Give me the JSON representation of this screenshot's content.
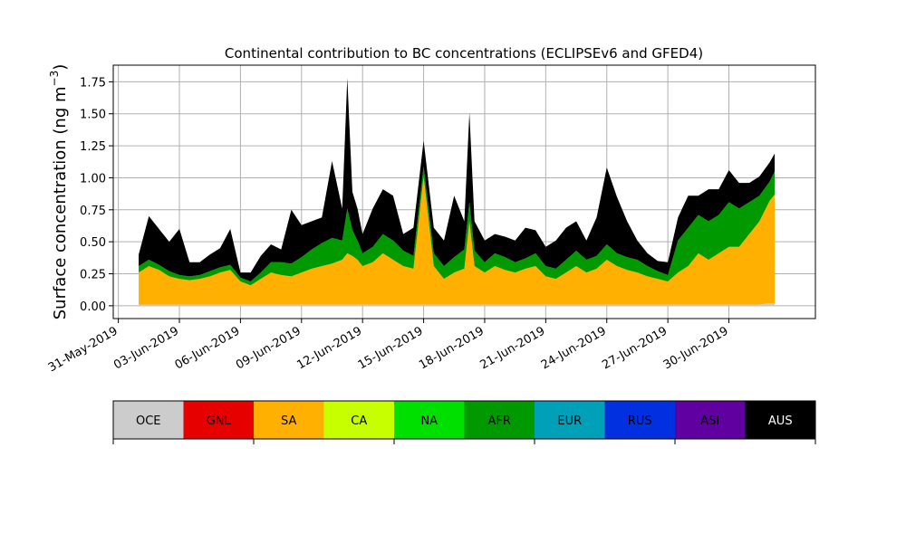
{
  "chart_data": {
    "type": "area",
    "stacked": true,
    "title": "Continental contribution to BC concentrations (ECLIPSEv6 and GFED4)",
    "xlabel": "",
    "ylabel": "Surface concentration (ng m",
    "ylabel_superscript": "−3",
    "ylabel_close": ")",
    "xlim": [
      "2019-05-30T18:00",
      "2019-07-04T06:00"
    ],
    "ylim": [
      -0.1,
      1.88
    ],
    "x_ticks": [
      "31-May-2019",
      "03-Jun-2019",
      "06-Jun-2019",
      "09-Jun-2019",
      "12-Jun-2019",
      "15-Jun-2019",
      "18-Jun-2019",
      "21-Jun-2019",
      "24-Jun-2019",
      "27-Jun-2019",
      "30-Jun-2019"
    ],
    "x_tick_dates": [
      "2019-05-31",
      "2019-06-03",
      "2019-06-06",
      "2019-06-09",
      "2019-06-12",
      "2019-06-15",
      "2019-06-18",
      "2019-06-21",
      "2019-06-24",
      "2019-06-27",
      "2019-06-30"
    ],
    "y_ticks": [
      0.0,
      0.25,
      0.5,
      0.75,
      1.0,
      1.25,
      1.5,
      1.75
    ],
    "y_tick_labels": [
      "0.00",
      "0.25",
      "0.50",
      "0.75",
      "1.00",
      "1.25",
      "1.50",
      "1.75"
    ],
    "grid": true,
    "legend_placement": "bottom colorbar",
    "x": [
      "2019-06-01",
      "2019-06-01T12:00",
      "2019-06-02",
      "2019-06-02T12:00",
      "2019-06-03",
      "2019-06-03T12:00",
      "2019-06-04",
      "2019-06-04T12:00",
      "2019-06-05",
      "2019-06-05T12:00",
      "2019-06-06",
      "2019-06-06T12:00",
      "2019-06-07",
      "2019-06-07T12:00",
      "2019-06-08",
      "2019-06-08T12:00",
      "2019-06-09",
      "2019-06-09T12:00",
      "2019-06-10",
      "2019-06-10T12:00",
      "2019-06-11",
      "2019-06-11T06:00",
      "2019-06-11T12:00",
      "2019-06-11T18:00",
      "2019-06-12",
      "2019-06-12T12:00",
      "2019-06-13",
      "2019-06-13T12:00",
      "2019-06-14",
      "2019-06-14T12:00",
      "2019-06-15",
      "2019-06-15T12:00",
      "2019-06-16",
      "2019-06-16T12:00",
      "2019-06-17",
      "2019-06-17T06:00",
      "2019-06-17T12:00",
      "2019-06-18",
      "2019-06-18T12:00",
      "2019-06-19",
      "2019-06-19T12:00",
      "2019-06-20",
      "2019-06-20T12:00",
      "2019-06-21",
      "2019-06-21T12:00",
      "2019-06-22",
      "2019-06-22T12:00",
      "2019-06-23",
      "2019-06-23T12:00",
      "2019-06-24",
      "2019-06-24T12:00",
      "2019-06-25",
      "2019-06-25T12:00",
      "2019-06-26",
      "2019-06-26T12:00",
      "2019-06-27",
      "2019-06-27T12:00",
      "2019-06-28",
      "2019-06-28T12:00",
      "2019-06-29",
      "2019-06-29T12:00",
      "2019-06-30",
      "2019-06-30T12:00",
      "2019-07-01",
      "2019-07-01T12:00",
      "2019-07-02",
      "2019-07-02T06:00"
    ],
    "series": [
      {
        "name": "OCE",
        "color": "#cccccc",
        "values": [
          0.01,
          0.01,
          0.01,
          0.01,
          0.01,
          0.01,
          0.01,
          0.01,
          0.01,
          0.01,
          0.01,
          0.01,
          0.01,
          0.01,
          0.01,
          0.01,
          0.01,
          0.01,
          0.01,
          0.01,
          0.01,
          0.01,
          0.01,
          0.01,
          0.01,
          0.01,
          0.01,
          0.01,
          0.01,
          0.01,
          0.01,
          0.01,
          0.01,
          0.01,
          0.01,
          0.01,
          0.01,
          0.01,
          0.01,
          0.01,
          0.01,
          0.01,
          0.01,
          0.01,
          0.01,
          0.01,
          0.01,
          0.01,
          0.01,
          0.01,
          0.01,
          0.01,
          0.01,
          0.01,
          0.01,
          0.01,
          0.01,
          0.01,
          0.01,
          0.01,
          0.01,
          0.01,
          0.01,
          0.01,
          0.01,
          0.02,
          0.02
        ]
      },
      {
        "name": "GNL",
        "color": "#e60000",
        "values": [
          0,
          0,
          0,
          0,
          0,
          0,
          0,
          0,
          0,
          0,
          0,
          0,
          0,
          0,
          0,
          0,
          0,
          0,
          0,
          0,
          0,
          0,
          0,
          0,
          0,
          0,
          0,
          0,
          0,
          0,
          0,
          0,
          0,
          0,
          0,
          0,
          0,
          0,
          0,
          0,
          0,
          0,
          0,
          0,
          0,
          0,
          0,
          0,
          0,
          0,
          0,
          0,
          0,
          0,
          0,
          0,
          0,
          0,
          0,
          0,
          0,
          0,
          0,
          0,
          0,
          0,
          0
        ]
      },
      {
        "name": "SA",
        "color": "#ffb000",
        "values": [
          0.25,
          0.3,
          0.27,
          0.22,
          0.2,
          0.19,
          0.2,
          0.22,
          0.25,
          0.27,
          0.18,
          0.15,
          0.2,
          0.25,
          0.23,
          0.22,
          0.25,
          0.28,
          0.3,
          0.32,
          0.35,
          0.4,
          0.38,
          0.35,
          0.3,
          0.33,
          0.4,
          0.35,
          0.3,
          0.28,
          1.0,
          0.3,
          0.2,
          0.25,
          0.28,
          0.65,
          0.3,
          0.25,
          0.3,
          0.27,
          0.25,
          0.28,
          0.3,
          0.22,
          0.2,
          0.25,
          0.3,
          0.25,
          0.28,
          0.35,
          0.3,
          0.27,
          0.25,
          0.22,
          0.2,
          0.18,
          0.25,
          0.3,
          0.4,
          0.35,
          0.4,
          0.45,
          0.45,
          0.55,
          0.65,
          0.8,
          0.85
        ]
      },
      {
        "name": "CA",
        "color": "#c8ff00",
        "values": [
          0,
          0,
          0,
          0,
          0,
          0,
          0,
          0,
          0,
          0,
          0,
          0,
          0,
          0,
          0,
          0,
          0,
          0,
          0,
          0,
          0,
          0,
          0,
          0,
          0,
          0,
          0,
          0,
          0,
          0,
          0,
          0,
          0,
          0,
          0,
          0,
          0,
          0,
          0,
          0,
          0,
          0,
          0,
          0,
          0,
          0,
          0,
          0,
          0,
          0,
          0,
          0,
          0,
          0,
          0,
          0,
          0,
          0,
          0,
          0,
          0,
          0,
          0,
          0,
          0,
          0,
          0
        ]
      },
      {
        "name": "NA",
        "color": "#00e000",
        "values": [
          0,
          0,
          0,
          0,
          0,
          0,
          0,
          0,
          0,
          0,
          0,
          0,
          0,
          0,
          0,
          0,
          0,
          0,
          0,
          0,
          0,
          0,
          0,
          0,
          0,
          0,
          0,
          0,
          0,
          0,
          0,
          0,
          0,
          0,
          0,
          0,
          0,
          0,
          0,
          0,
          0,
          0,
          0,
          0,
          0,
          0,
          0,
          0,
          0,
          0,
          0,
          0,
          0,
          0,
          0,
          0,
          0,
          0,
          0,
          0,
          0,
          0,
          0,
          0,
          0,
          0,
          0
        ]
      },
      {
        "name": "AFR",
        "color": "#009a00",
        "values": [
          0.05,
          0.05,
          0.04,
          0.04,
          0.03,
          0.03,
          0.03,
          0.04,
          0.04,
          0.04,
          0.03,
          0.03,
          0.05,
          0.08,
          0.1,
          0.1,
          0.12,
          0.15,
          0.18,
          0.2,
          0.15,
          0.35,
          0.2,
          0.15,
          0.1,
          0.12,
          0.15,
          0.15,
          0.12,
          0.1,
          0.08,
          0.1,
          0.1,
          0.12,
          0.15,
          0.15,
          0.12,
          0.08,
          0.1,
          0.1,
          0.08,
          0.08,
          0.1,
          0.08,
          0.08,
          0.1,
          0.12,
          0.1,
          0.1,
          0.12,
          0.1,
          0.1,
          0.1,
          0.08,
          0.06,
          0.05,
          0.25,
          0.3,
          0.3,
          0.3,
          0.3,
          0.35,
          0.3,
          0.25,
          0.2,
          0.15,
          0.18
        ]
      },
      {
        "name": "EUR",
        "color": "#00a0b8",
        "values": [
          0,
          0,
          0,
          0,
          0,
          0,
          0,
          0,
          0,
          0,
          0,
          0,
          0,
          0,
          0,
          0,
          0,
          0,
          0,
          0,
          0,
          0,
          0,
          0,
          0,
          0,
          0,
          0,
          0,
          0,
          0,
          0,
          0,
          0,
          0,
          0,
          0,
          0,
          0,
          0,
          0,
          0,
          0,
          0,
          0,
          0,
          0,
          0,
          0,
          0,
          0,
          0,
          0,
          0,
          0,
          0,
          0,
          0,
          0,
          0,
          0,
          0,
          0,
          0,
          0,
          0,
          0
        ]
      },
      {
        "name": "RUS",
        "color": "#0030e0",
        "values": [
          0,
          0,
          0,
          0,
          0,
          0,
          0,
          0,
          0,
          0,
          0,
          0,
          0,
          0,
          0,
          0,
          0,
          0,
          0,
          0,
          0,
          0,
          0,
          0,
          0,
          0,
          0,
          0,
          0,
          0,
          0,
          0,
          0,
          0,
          0,
          0,
          0,
          0,
          0,
          0,
          0,
          0,
          0,
          0,
          0,
          0,
          0,
          0,
          0,
          0,
          0,
          0,
          0,
          0,
          0,
          0,
          0,
          0,
          0,
          0,
          0,
          0,
          0,
          0,
          0,
          0,
          0
        ]
      },
      {
        "name": "ASI",
        "color": "#6000a0",
        "values": [
          0,
          0,
          0,
          0,
          0,
          0,
          0,
          0,
          0,
          0,
          0,
          0,
          0,
          0,
          0,
          0,
          0,
          0,
          0,
          0,
          0,
          0,
          0,
          0,
          0,
          0,
          0,
          0,
          0,
          0,
          0,
          0,
          0,
          0,
          0,
          0,
          0,
          0,
          0,
          0,
          0,
          0,
          0,
          0,
          0,
          0,
          0,
          0,
          0,
          0,
          0,
          0,
          0,
          0,
          0,
          0,
          0,
          0,
          0,
          0,
          0,
          0,
          0,
          0,
          0,
          0,
          0
        ]
      },
      {
        "name": "AUS",
        "color": "#000000",
        "values": [
          0.09,
          0.34,
          0.28,
          0.23,
          0.36,
          0.11,
          0.1,
          0.13,
          0.15,
          0.28,
          0.04,
          0.07,
          0.13,
          0.14,
          0.1,
          0.42,
          0.25,
          0.22,
          0.2,
          0.6,
          0.25,
          1.02,
          0.3,
          0.25,
          0.15,
          0.3,
          0.35,
          0.35,
          0.13,
          0.22,
          0.2,
          0.2,
          0.2,
          0.48,
          0.22,
          0.7,
          0.23,
          0.17,
          0.15,
          0.16,
          0.17,
          0.24,
          0.18,
          0.15,
          0.22,
          0.25,
          0.23,
          0.15,
          0.3,
          0.6,
          0.44,
          0.28,
          0.15,
          0.1,
          0.08,
          0.1,
          0.18,
          0.25,
          0.15,
          0.25,
          0.2,
          0.25,
          0.2,
          0.15,
          0.15,
          0.15,
          0.14
        ]
      }
    ],
    "legend": [
      {
        "name": "OCE",
        "color": "#cccccc"
      },
      {
        "name": "GNL",
        "color": "#e60000"
      },
      {
        "name": "SA",
        "color": "#ffb000"
      },
      {
        "name": "CA",
        "color": "#c8ff00"
      },
      {
        "name": "NA",
        "color": "#00e000"
      },
      {
        "name": "AFR",
        "color": "#009a00"
      },
      {
        "name": "EUR",
        "color": "#00a0b8"
      },
      {
        "name": "RUS",
        "color": "#0030e0"
      },
      {
        "name": "ASI",
        "color": "#6000a0"
      },
      {
        "name": "AUS",
        "color": "#000000"
      }
    ]
  }
}
